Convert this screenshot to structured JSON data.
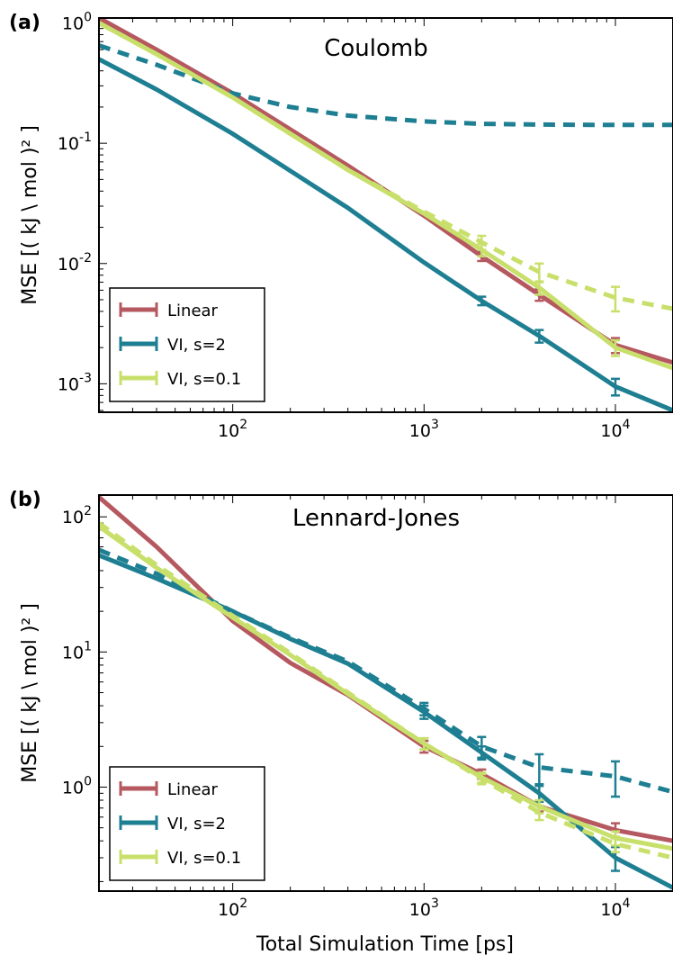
{
  "figure": {
    "xlabel": "Total Simulation Time [ps]"
  },
  "chart_data": [
    {
      "type": "line",
      "panel_label": "(a)",
      "title": "Coulomb",
      "ylabel": "MSE [( kJ \\ mol )² ]",
      "xscale": "log",
      "yscale": "log",
      "xlim": [
        20,
        20000
      ],
      "ylim": [
        0.00058,
        1.1
      ],
      "xticks": [
        {
          "value": 100,
          "base": "10",
          "exp": "2"
        },
        {
          "value": 1000,
          "base": "10",
          "exp": "3"
        },
        {
          "value": 10000,
          "base": "10",
          "exp": "4"
        }
      ],
      "yticks": [
        {
          "value": 0.001,
          "base": "10",
          "exp": "-3"
        },
        {
          "value": 0.01,
          "base": "10",
          "exp": "-2"
        },
        {
          "value": 0.1,
          "base": "10",
          "exp": "-1"
        },
        {
          "value": 1,
          "base": "10",
          "exp": "0"
        }
      ],
      "legend": {
        "position": "lower-left"
      },
      "series": [
        {
          "name": "Linear",
          "color": "#b5585f",
          "style": "solid",
          "x": [
            20,
            40,
            100,
            200,
            400,
            1000,
            2000,
            4000,
            10000,
            20000
          ],
          "y": [
            1.1,
            0.6,
            0.26,
            0.13,
            0.065,
            0.025,
            0.0115,
            0.0055,
            0.0021,
            0.0015
          ],
          "err": [
            0,
            0,
            0,
            0,
            0,
            0,
            0.001,
            0.0006,
            0.0003,
            0
          ]
        },
        {
          "name": "VI, s=2",
          "color": "#1e7f92",
          "style": "solid",
          "x": [
            20,
            40,
            100,
            200,
            400,
            1000,
            2000,
            4000,
            10000,
            20000
          ],
          "y": [
            0.5,
            0.28,
            0.12,
            0.059,
            0.029,
            0.0102,
            0.0049,
            0.0025,
            0.00095,
            0.0006
          ],
          "err": [
            0,
            0,
            0,
            0,
            0,
            0,
            0.0004,
            0.0003,
            0.00015,
            0
          ]
        },
        {
          "color": "#1e7f92",
          "style": "dashed",
          "x": [
            20,
            40,
            100,
            200,
            400,
            1000,
            2000,
            4000,
            10000,
            20000
          ],
          "y": [
            0.65,
            0.45,
            0.26,
            0.2,
            0.17,
            0.152,
            0.145,
            0.143,
            0.142,
            0.142
          ],
          "err": [
            0,
            0,
            0,
            0,
            0,
            0,
            0,
            0,
            0,
            0
          ]
        },
        {
          "name": "VI, s=0.1",
          "color": "#c8e06b",
          "style": "solid",
          "x": [
            20,
            40,
            100,
            200,
            400,
            1000,
            2000,
            4000,
            10000,
            20000
          ],
          "y": [
            1.0,
            0.55,
            0.24,
            0.12,
            0.06,
            0.026,
            0.013,
            0.0063,
            0.002,
            0.00135
          ],
          "err": [
            0,
            0,
            0,
            0,
            0,
            0,
            0.0015,
            0.0008,
            0.0003,
            0
          ]
        },
        {
          "color": "#c8e06b",
          "style": "dashed",
          "x": [
            20,
            40,
            100,
            200,
            400,
            1000,
            2000,
            4000,
            10000,
            20000
          ],
          "y": [
            1.0,
            0.55,
            0.24,
            0.12,
            0.06,
            0.027,
            0.015,
            0.0085,
            0.0052,
            0.0042
          ],
          "err": [
            0,
            0,
            0,
            0,
            0,
            0,
            0.002,
            0.0015,
            0.0012,
            0
          ]
        }
      ]
    },
    {
      "type": "line",
      "panel_label": "(b)",
      "title": "Lennard-Jones",
      "ylabel": "MSE [( kJ \\ mol )² ]",
      "xscale": "log",
      "yscale": "log",
      "xlim": [
        20,
        20000
      ],
      "ylim": [
        0.17,
        145
      ],
      "xticks": [
        {
          "value": 100,
          "base": "10",
          "exp": "2"
        },
        {
          "value": 1000,
          "base": "10",
          "exp": "3"
        },
        {
          "value": 10000,
          "base": "10",
          "exp": "4"
        }
      ],
      "yticks": [
        {
          "value": 1,
          "base": "10",
          "exp": "0"
        },
        {
          "value": 10,
          "base": "10",
          "exp": "1"
        },
        {
          "value": 100,
          "base": "10",
          "exp": "2"
        }
      ],
      "legend": {
        "position": "lower-left"
      },
      "series": [
        {
          "name": "Linear",
          "color": "#b5585f",
          "style": "solid",
          "x": [
            20,
            40,
            100,
            200,
            400,
            1000,
            2000,
            4000,
            10000,
            20000
          ],
          "y": [
            140,
            60,
            17,
            8.3,
            4.8,
            2.0,
            1.25,
            0.72,
            0.48,
            0.4
          ],
          "err": [
            0,
            0,
            0,
            0,
            0,
            0.2,
            0.1,
            0.06,
            0.06,
            0
          ]
        },
        {
          "name": "VI, s=2",
          "color": "#1e7f92",
          "style": "solid",
          "x": [
            20,
            40,
            100,
            200,
            400,
            1000,
            2000,
            4000,
            10000,
            20000
          ],
          "y": [
            52,
            35,
            20,
            12.5,
            8.2,
            3.6,
            1.8,
            0.9,
            0.3,
            0.18
          ],
          "err": [
            0,
            0,
            0,
            0,
            0,
            0.4,
            0.2,
            0.12,
            0.06,
            0
          ]
        },
        {
          "color": "#1e7f92",
          "style": "dashed",
          "x": [
            20,
            40,
            100,
            200,
            400,
            1000,
            2000,
            4000,
            10000,
            20000
          ],
          "y": [
            57,
            38,
            20,
            12.8,
            8.5,
            3.8,
            2.0,
            1.4,
            1.2,
            0.92
          ],
          "err": [
            0,
            0,
            0,
            0,
            0,
            0.4,
            0.35,
            0.35,
            0.35,
            0
          ]
        },
        {
          "name": "VI, s=0.1",
          "color": "#c8e06b",
          "style": "solid",
          "x": [
            20,
            40,
            100,
            200,
            400,
            1000,
            2000,
            4000,
            10000,
            20000
          ],
          "y": [
            85,
            42,
            18,
            9.5,
            4.9,
            2.1,
            1.18,
            0.72,
            0.42,
            0.35
          ],
          "err": [
            0,
            0,
            0,
            0,
            0,
            0.2,
            0.1,
            0.08,
            0.05,
            0
          ]
        },
        {
          "color": "#c8e06b",
          "style": "dashed",
          "x": [
            20,
            40,
            100,
            200,
            400,
            1000,
            2000,
            4000,
            10000,
            20000
          ],
          "y": [
            90,
            44,
            18.5,
            9.8,
            5.0,
            2.1,
            1.15,
            0.65,
            0.38,
            0.3
          ],
          "err": [
            0,
            0,
            0,
            0,
            0,
            0.2,
            0.1,
            0.08,
            0.05,
            0
          ]
        }
      ]
    }
  ]
}
